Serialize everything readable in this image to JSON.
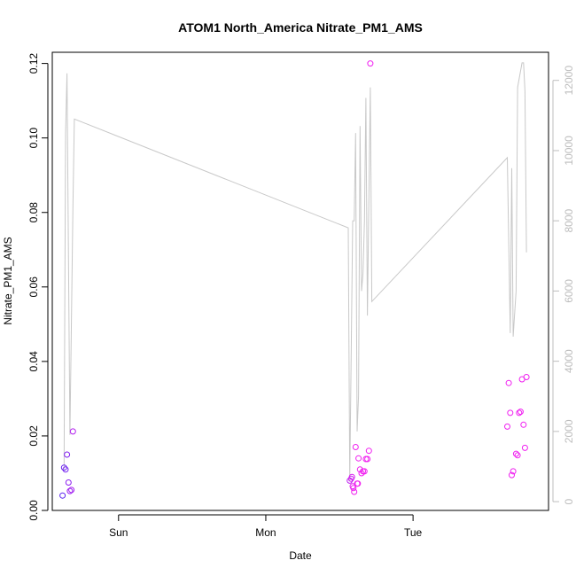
{
  "chart_data": {
    "type": "scatter",
    "title": "ATOM1 North_America Nitrate_PM1_AMS",
    "xlabel": "Date",
    "ylabel": "Nitrate_PM1_AMS",
    "x_ticks": [
      "Sun",
      "Mon",
      "Tue"
    ],
    "x_tick_days": [
      1,
      2,
      3
    ],
    "x_range_days": [
      0.55,
      3.92
    ],
    "ylim": [
      0,
      0.123
    ],
    "y_ticks": [
      0.0,
      0.02,
      0.04,
      0.06,
      0.08,
      0.1,
      0.12
    ],
    "y_tick_labels": [
      "0.00",
      "0.02",
      "0.04",
      "0.06",
      "0.08",
      "0.10",
      "0.12"
    ],
    "y2lim": [
      -250,
      12800
    ],
    "y2_ticks": [
      0,
      2000,
      4000,
      6000,
      8000,
      10000,
      12000
    ],
    "y2_tick_labels": [
      "0",
      "2000",
      "4000",
      "6000",
      "8000",
      "10000",
      "12000"
    ],
    "grid": false,
    "series": [
      {
        "type": "scatter",
        "marker": "open-circle",
        "color_start": "#5a1ff0",
        "color_end": "#f01ff0",
        "points": [
          [
            0.62,
            0.004
          ],
          [
            0.63,
            0.0115
          ],
          [
            0.64,
            0.011
          ],
          [
            0.65,
            0.015
          ],
          [
            0.66,
            0.0075
          ],
          [
            0.67,
            0.0052
          ],
          [
            0.68,
            0.0055
          ],
          [
            0.69,
            0.0212
          ],
          [
            2.57,
            0.008
          ],
          [
            2.58,
            0.0085
          ],
          [
            2.585,
            0.009
          ],
          [
            2.59,
            0.0065
          ],
          [
            2.595,
            0.006
          ],
          [
            2.6,
            0.005
          ],
          [
            2.61,
            0.017
          ],
          [
            2.62,
            0.0072
          ],
          [
            2.625,
            0.0072
          ],
          [
            2.63,
            0.014
          ],
          [
            2.64,
            0.011
          ],
          [
            2.65,
            0.01
          ],
          [
            2.66,
            0.0105
          ],
          [
            2.67,
            0.0105
          ],
          [
            2.68,
            0.0138
          ],
          [
            2.69,
            0.0138
          ],
          [
            2.7,
            0.016
          ],
          [
            2.71,
            0.12
          ],
          [
            3.64,
            0.0225
          ],
          [
            3.65,
            0.0342
          ],
          [
            3.66,
            0.0262
          ],
          [
            3.67,
            0.0095
          ],
          [
            3.68,
            0.0105
          ],
          [
            3.7,
            0.0152
          ],
          [
            3.71,
            0.0148
          ],
          [
            3.72,
            0.0262
          ],
          [
            3.73,
            0.0265
          ],
          [
            3.74,
            0.0352
          ],
          [
            3.75,
            0.023
          ],
          [
            3.76,
            0.0168
          ],
          [
            3.77,
            0.0358
          ]
        ]
      },
      {
        "type": "line",
        "axis": "right",
        "color": "#c8c8c8",
        "points": [
          [
            0.63,
            900
          ],
          [
            0.64,
            10500
          ],
          [
            0.65,
            12200
          ],
          [
            0.67,
            1900
          ],
          [
            0.69,
            8400
          ],
          [
            0.7,
            10900
          ],
          [
            2.56,
            7800
          ],
          [
            2.57,
            600
          ],
          [
            2.59,
            8000
          ],
          [
            2.6,
            8000
          ],
          [
            2.61,
            10500
          ],
          [
            2.62,
            2000
          ],
          [
            2.63,
            3000
          ],
          [
            2.64,
            10700
          ],
          [
            2.65,
            6000
          ],
          [
            2.66,
            6500
          ],
          [
            2.67,
            8000
          ],
          [
            2.68,
            11500
          ],
          [
            2.69,
            5300
          ],
          [
            2.71,
            11800
          ],
          [
            2.72,
            5700
          ],
          [
            3.64,
            9800
          ],
          [
            3.66,
            4800
          ],
          [
            3.67,
            9500
          ],
          [
            3.68,
            4700
          ],
          [
            3.7,
            6000
          ],
          [
            3.71,
            11800
          ],
          [
            3.74,
            12500
          ],
          [
            3.75,
            12500
          ],
          [
            3.76,
            11700
          ],
          [
            3.77,
            7100
          ]
        ]
      }
    ]
  }
}
